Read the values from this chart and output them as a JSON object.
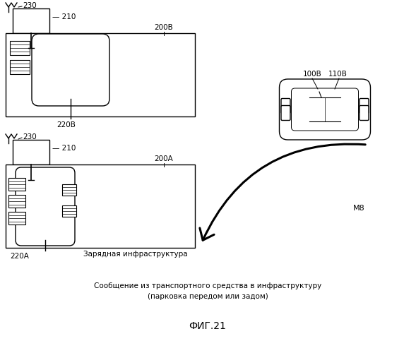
{
  "title": "ФИГ.21",
  "bg_color": "#ffffff",
  "fig_width": 5.89,
  "fig_height": 5.0,
  "labels": {
    "230_top": "230",
    "210_top": "— 210",
    "200B": "200B",
    "220B": "220B",
    "230_bot": "230",
    "210_bot": "— 210",
    "200A": "200A",
    "220A": "220A",
    "100B": "100B",
    "110B": "110B",
    "M8": "M8",
    "infra": "Зарядная инфраструктура",
    "msg_line1": "Сообщение из транспортного средства в инфраструктуру",
    "msg_line2": "(парковка передом или задом)"
  }
}
